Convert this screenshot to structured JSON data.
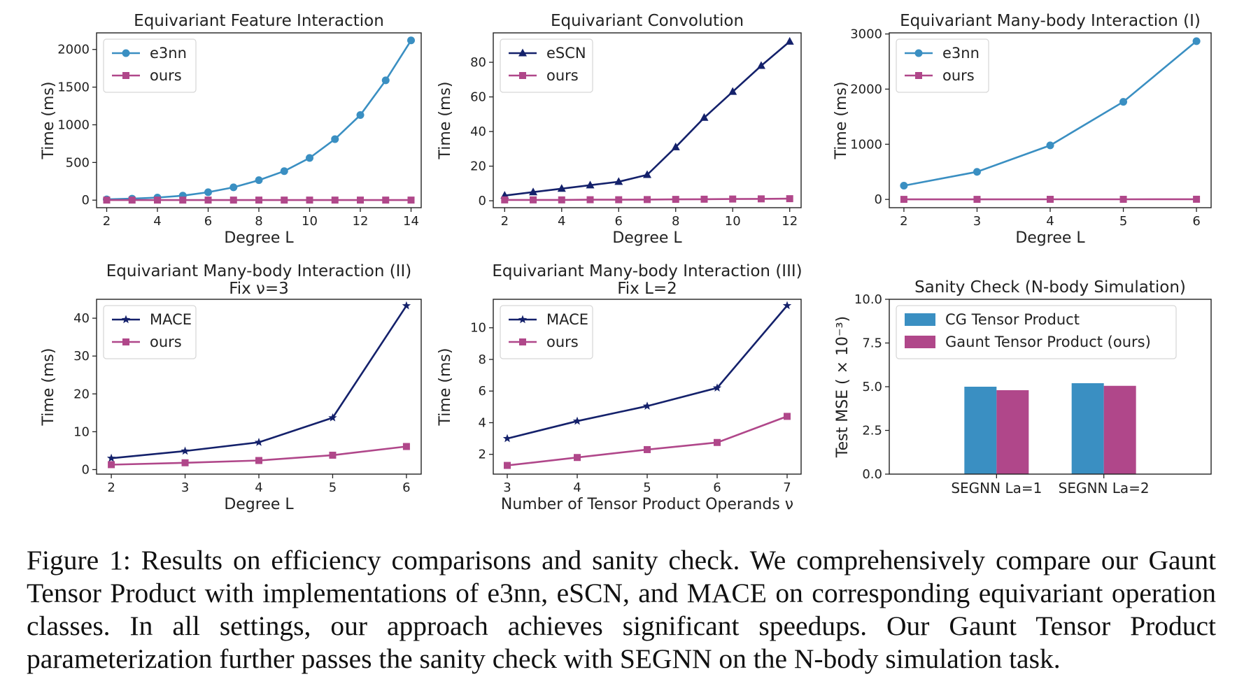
{
  "chart_data": [
    {
      "type": "line",
      "title": "Equivariant Feature Interaction",
      "xlabel": "Degree L",
      "ylabel": "Time (ms)",
      "xlim": [
        1.6,
        14.4
      ],
      "ylim": [
        -100,
        2220
      ],
      "xticks": [
        2,
        4,
        6,
        8,
        10,
        12,
        14
      ],
      "yticks": [
        0,
        500,
        1000,
        1500,
        2000
      ],
      "legend_position": "top-left",
      "series": [
        {
          "name": "e3nn",
          "color": "#3a8fc2",
          "marker": "circle",
          "x": [
            2,
            3,
            4,
            5,
            6,
            7,
            8,
            9,
            10,
            11,
            12,
            13,
            14
          ],
          "y": [
            10,
            20,
            35,
            60,
            105,
            170,
            265,
            385,
            560,
            810,
            1130,
            1590,
            2120
          ]
        },
        {
          "name": "ours",
          "color": "#b0478a",
          "marker": "square",
          "x": [
            2,
            3,
            4,
            5,
            6,
            7,
            8,
            9,
            10,
            11,
            12,
            13,
            14
          ],
          "y": [
            1,
            1,
            1,
            1,
            1,
            1,
            1,
            1,
            1,
            1,
            1,
            1,
            1
          ]
        }
      ]
    },
    {
      "type": "line",
      "title": "Equivariant Convolution",
      "xlabel": "Degree L",
      "ylabel": "Time (ms)",
      "xlim": [
        1.6,
        12.4
      ],
      "ylim": [
        -4,
        97
      ],
      "xticks": [
        2,
        4,
        6,
        8,
        10,
        12
      ],
      "yticks": [
        0,
        20,
        40,
        60,
        80
      ],
      "legend_position": "top-left",
      "series": [
        {
          "name": "eSCN",
          "color": "#14216b",
          "marker": "triangle",
          "x": [
            2,
            3,
            4,
            5,
            6,
            7,
            8,
            9,
            10,
            11,
            12
          ],
          "y": [
            3,
            5,
            7,
            9,
            11,
            15,
            31,
            48,
            63,
            78,
            92
          ]
        },
        {
          "name": "ours",
          "color": "#b0478a",
          "marker": "square",
          "x": [
            2,
            3,
            4,
            5,
            6,
            7,
            8,
            9,
            10,
            11,
            12
          ],
          "y": [
            0.5,
            0.5,
            0.5,
            0.6,
            0.6,
            0.7,
            0.8,
            0.9,
            1.0,
            1.1,
            1.2
          ]
        }
      ]
    },
    {
      "type": "line",
      "title": "Equivariant Many-body Interaction (I)",
      "xlabel": "Degree L",
      "ylabel": "Time (ms)",
      "xlim": [
        1.8,
        6.2
      ],
      "ylim": [
        -150,
        3020
      ],
      "xticks": [
        2,
        3,
        4,
        5,
        6
      ],
      "yticks": [
        0,
        1000,
        2000,
        3000
      ],
      "legend_position": "top-left",
      "series": [
        {
          "name": "e3nn",
          "color": "#3a8fc2",
          "marker": "circle",
          "x": [
            2,
            3,
            4,
            5,
            6
          ],
          "y": [
            250,
            500,
            980,
            1770,
            2870
          ]
        },
        {
          "name": "ours",
          "color": "#b0478a",
          "marker": "square",
          "x": [
            2,
            3,
            4,
            5,
            6
          ],
          "y": [
            1,
            1,
            2,
            2,
            3
          ]
        }
      ]
    },
    {
      "type": "line",
      "title": "Equivariant Many-body Interaction (II)",
      "subtitle": "Fix ν=3",
      "xlabel": "Degree L",
      "ylabel": "Time (ms)",
      "xlim": [
        1.8,
        6.2
      ],
      "ylim": [
        -1.2,
        45
      ],
      "xticks": [
        2,
        3,
        4,
        5,
        6
      ],
      "yticks": [
        0,
        10,
        20,
        30,
        40
      ],
      "legend_position": "top-left",
      "series": [
        {
          "name": "MACE",
          "color": "#14216b",
          "marker": "star",
          "x": [
            2,
            3,
            4,
            5,
            6
          ],
          "y": [
            3.0,
            4.9,
            7.2,
            13.7,
            43.3
          ]
        },
        {
          "name": "ours",
          "color": "#b0478a",
          "marker": "square",
          "x": [
            2,
            3,
            4,
            5,
            6
          ],
          "y": [
            1.3,
            1.8,
            2.4,
            3.8,
            6.1
          ]
        }
      ]
    },
    {
      "type": "line",
      "title": "Equivariant Many-body Interaction (III)",
      "subtitle": "Fix L=2",
      "xlabel": "Number of Tensor Product Operands ν",
      "ylabel": "Time (ms)",
      "xlim": [
        2.8,
        7.2
      ],
      "ylim": [
        0.75,
        11.8
      ],
      "xticks": [
        3,
        4,
        5,
        6,
        7
      ],
      "yticks": [
        2,
        4,
        6,
        8,
        10
      ],
      "legend_position": "top-left",
      "series": [
        {
          "name": "MACE",
          "color": "#14216b",
          "marker": "star",
          "x": [
            3,
            4,
            5,
            6,
            7
          ],
          "y": [
            3.0,
            4.1,
            5.05,
            6.2,
            11.4
          ]
        },
        {
          "name": "ours",
          "color": "#b0478a",
          "marker": "square",
          "x": [
            3,
            4,
            5,
            6,
            7
          ],
          "y": [
            1.3,
            1.8,
            2.3,
            2.75,
            4.4
          ]
        }
      ]
    },
    {
      "type": "bar",
      "title": "Sanity Check (N-body Simulation)",
      "xlabel": "",
      "ylabel": "Test MSE ( × 10⁻³)",
      "ylim": [
        0,
        10
      ],
      "yticks": [
        "0.0",
        "2.5",
        "5.0",
        "7.5",
        "10.0"
      ],
      "categories": [
        "SEGNN La=1",
        "SEGNN La=2"
      ],
      "legend_position": "top",
      "series": [
        {
          "name": "CG Tensor Product",
          "color": "#3a8fc2",
          "values": [
            5.0,
            5.2
          ]
        },
        {
          "name": "Gaunt Tensor Product (ours)",
          "color": "#b0478a",
          "values": [
            4.8,
            5.05
          ]
        }
      ]
    }
  ],
  "caption": "Figure 1: Results on efficiency comparisons and sanity check. We comprehensively compare our Gaunt Tensor Product with implementations of e3nn, eSCN, and MACE on corresponding equivariant operation classes. In all settings, our approach achieves significant speedups. Our Gaunt Tensor Product parameterization further passes the sanity check with SEGNN on the N-body simulation task."
}
